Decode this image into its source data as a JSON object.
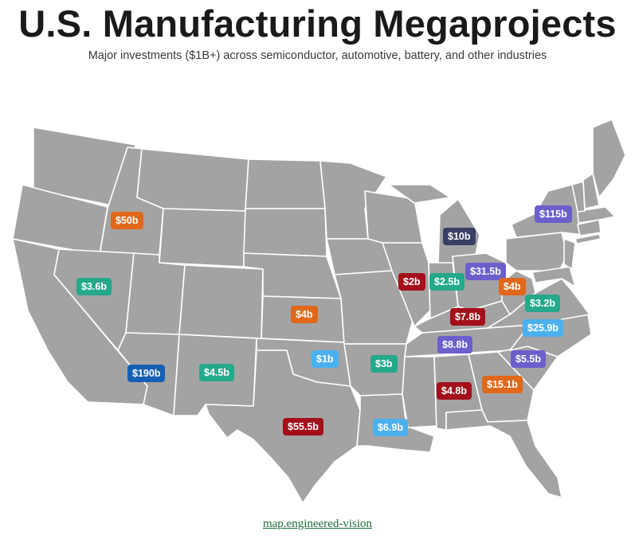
{
  "header": {
    "title": "U.S. Manufacturing Megaprojects",
    "subtitle": "Major investments ($1B+) across semiconductor, automotive, battery, and other industries"
  },
  "colors": {
    "map_fill": "#a3a3a3",
    "state_border": "#ffffff",
    "dark_red": "#a3101a",
    "orange": "#e0681a",
    "teal": "#24a98a",
    "purple": "#6b5fcc",
    "navy": "#3a3f66",
    "royal_blue": "#1560b5",
    "light_blue": "#4bb0ee"
  },
  "markers": [
    {
      "id": "idaho",
      "label": "$50b",
      "color": "orange"
    },
    {
      "id": "nevada",
      "label": "$3.6b",
      "color": "teal"
    },
    {
      "id": "arizona",
      "label": "$190b",
      "color": "royal_blue"
    },
    {
      "id": "new-mexico",
      "label": "$4.5b",
      "color": "teal"
    },
    {
      "id": "kansas",
      "label": "$4b",
      "color": "orange"
    },
    {
      "id": "oklahoma",
      "label": "$1b",
      "color": "light_blue"
    },
    {
      "id": "texas",
      "label": "$55.5b",
      "color": "dark_red"
    },
    {
      "id": "arkansas",
      "label": "$3b",
      "color": "teal"
    },
    {
      "id": "louisiana",
      "label": "$6.9b",
      "color": "light_blue"
    },
    {
      "id": "michigan",
      "label": "$10b",
      "color": "navy"
    },
    {
      "id": "illinois",
      "label": "$2b",
      "color": "dark_red"
    },
    {
      "id": "indiana",
      "label": "$2.5b",
      "color": "teal"
    },
    {
      "id": "ohio",
      "label": "$31.5b",
      "color": "purple"
    },
    {
      "id": "west-virginia",
      "label": "$4b",
      "color": "orange"
    },
    {
      "id": "new-york",
      "label": "$115b",
      "color": "purple"
    },
    {
      "id": "virginia",
      "label": "$3.2b",
      "color": "teal"
    },
    {
      "id": "kentucky",
      "label": "$7.8b",
      "color": "dark_red"
    },
    {
      "id": "north-carolina",
      "label": "$25.9b",
      "color": "light_blue"
    },
    {
      "id": "tennessee",
      "label": "$8.8b",
      "color": "purple"
    },
    {
      "id": "south-carolina",
      "label": "$5.5b",
      "color": "purple"
    },
    {
      "id": "georgia",
      "label": "$15.1b",
      "color": "orange"
    },
    {
      "id": "alabama",
      "label": "$4.8b",
      "color": "dark_red"
    }
  ],
  "footer": {
    "link_text": "map.engineered-vision"
  }
}
